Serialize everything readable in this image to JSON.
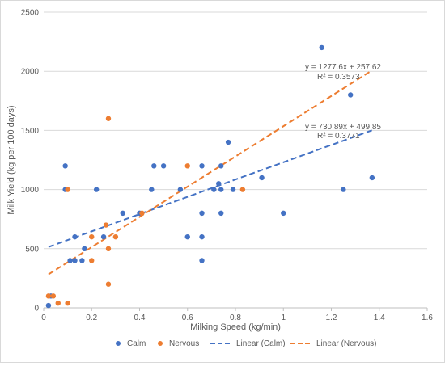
{
  "chart_data": {
    "type": "scatter",
    "xlabel": "Milking Speed (kg/min)",
    "ylabel": "Milk Yield (kg per 100 days)",
    "xlim": [
      0,
      1.6
    ],
    "ylim": [
      0,
      2500
    ],
    "xticks": [
      "0",
      "0.2",
      "0.4",
      "0.6",
      "0.8",
      "1",
      "1.2",
      "1.4",
      "1.6"
    ],
    "yticks": [
      "0",
      "500",
      "1000",
      "1500",
      "2000",
      "2500"
    ],
    "xtick_values": [
      0,
      0.2,
      0.4,
      0.6,
      0.8,
      1.0,
      1.2,
      1.4,
      1.6
    ],
    "ytick_values": [
      0,
      500,
      1000,
      1500,
      2000,
      2500
    ],
    "grid": "horizontal",
    "legend_position": "bottom",
    "series": [
      {
        "name": "Calm",
        "color": "#4472c4",
        "points": [
          [
            0.02,
            20
          ],
          [
            0.03,
            100
          ],
          [
            0.09,
            1200
          ],
          [
            0.09,
            1000
          ],
          [
            0.11,
            400
          ],
          [
            0.13,
            600
          ],
          [
            0.13,
            400
          ],
          [
            0.16,
            400
          ],
          [
            0.17,
            500
          ],
          [
            0.22,
            1000
          ],
          [
            0.25,
            600
          ],
          [
            0.33,
            800
          ],
          [
            0.4,
            800
          ],
          [
            0.45,
            1000
          ],
          [
            0.46,
            1200
          ],
          [
            0.5,
            1200
          ],
          [
            0.57,
            1000
          ],
          [
            0.6,
            600
          ],
          [
            0.66,
            1200
          ],
          [
            0.66,
            800
          ],
          [
            0.66,
            600
          ],
          [
            0.66,
            400
          ],
          [
            0.71,
            1000
          ],
          [
            0.73,
            1050
          ],
          [
            0.74,
            1200
          ],
          [
            0.74,
            1000
          ],
          [
            0.74,
            800
          ],
          [
            0.77,
            1400
          ],
          [
            0.79,
            1000
          ],
          [
            0.91,
            1100
          ],
          [
            1.0,
            800
          ],
          [
            1.16,
            2200
          ],
          [
            1.25,
            1000
          ],
          [
            1.28,
            1800
          ],
          [
            1.37,
            1100
          ]
        ]
      },
      {
        "name": "Nervous",
        "color": "#ed7d31",
        "points": [
          [
            0.02,
            100
          ],
          [
            0.04,
            100
          ],
          [
            0.06,
            40
          ],
          [
            0.1,
            40
          ],
          [
            0.1,
            1000
          ],
          [
            0.2,
            600
          ],
          [
            0.2,
            400
          ],
          [
            0.26,
            700
          ],
          [
            0.27,
            1600
          ],
          [
            0.27,
            500
          ],
          [
            0.27,
            200
          ],
          [
            0.3,
            600
          ],
          [
            0.41,
            800
          ],
          [
            0.6,
            1200
          ],
          [
            0.83,
            1000
          ]
        ]
      }
    ],
    "trendlines": [
      {
        "name": "Linear (Calm)",
        "color": "#4472c4",
        "slope": 730.89,
        "intercept": 499.85,
        "x_range": [
          0.02,
          1.37
        ],
        "equation": "y = 730.89x + 499.85",
        "r2": "R² = 0.3771"
      },
      {
        "name": "Linear (Nervous)",
        "color": "#ed7d31",
        "slope": 1277.6,
        "intercept": 257.62,
        "x_range": [
          0.02,
          1.37
        ],
        "equation": "y = 1277.6x + 257.62",
        "r2": "R² = 0.3573"
      }
    ]
  }
}
